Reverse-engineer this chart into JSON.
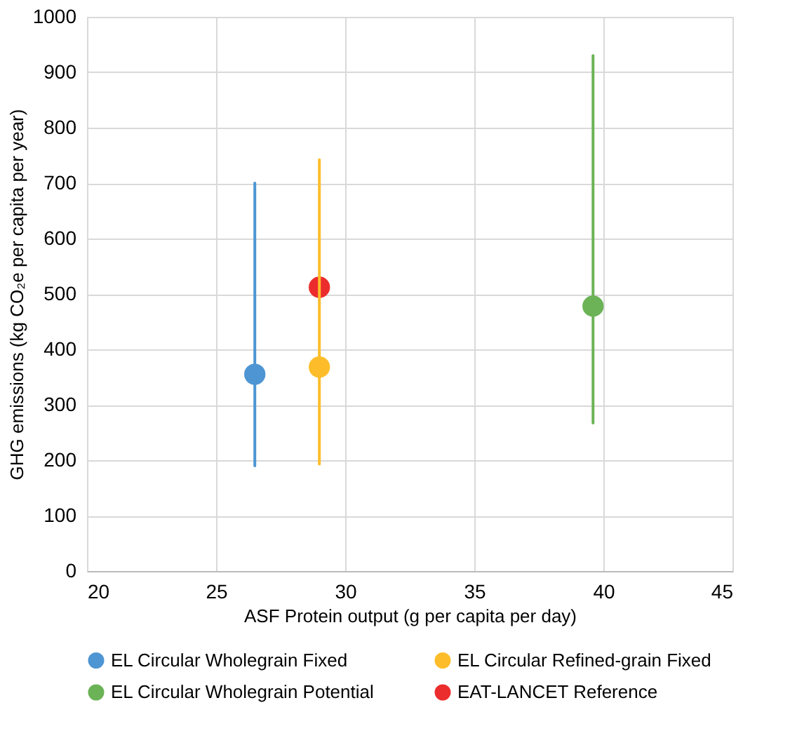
{
  "chart_data": {
    "type": "scatter",
    "xlabel": "ASF Protein output (g per capita per day)",
    "ylabel": "GHG emissions (kg CO₂e  per capita per year)",
    "xlim": [
      20,
      45
    ],
    "xticks": [
      20,
      25,
      30,
      35,
      40,
      45
    ],
    "ylim": [
      0,
      1000
    ],
    "yticks": [
      0,
      100,
      200,
      300,
      400,
      500,
      600,
      700,
      800,
      900,
      1000
    ],
    "grid": true,
    "legend": "bottom",
    "marker": "circle",
    "series": [
      {
        "name": "EL Circular Wholegrain Fixed",
        "color": "#4e95d3",
        "x": [
          26.5
        ],
        "values": [
          355
        ],
        "errors": [
          [
            190,
            700
          ]
        ]
      },
      {
        "name": "EL Circular Refined-grain Fixed",
        "color": "#fdbd2a",
        "x": [
          29
        ],
        "values": [
          368
        ],
        "errors": [
          [
            193,
            742
          ]
        ]
      },
      {
        "name": "EL Circular Wholegrain Potential",
        "color": "#6bb356",
        "x": [
          39.6
        ],
        "values": [
          478
        ],
        "errors": [
          [
            267,
            930
          ]
        ]
      },
      {
        "name": "EAT-LANCET Reference",
        "color": "#ec2d2d",
        "x": [
          29
        ],
        "values": [
          512
        ]
      }
    ]
  }
}
